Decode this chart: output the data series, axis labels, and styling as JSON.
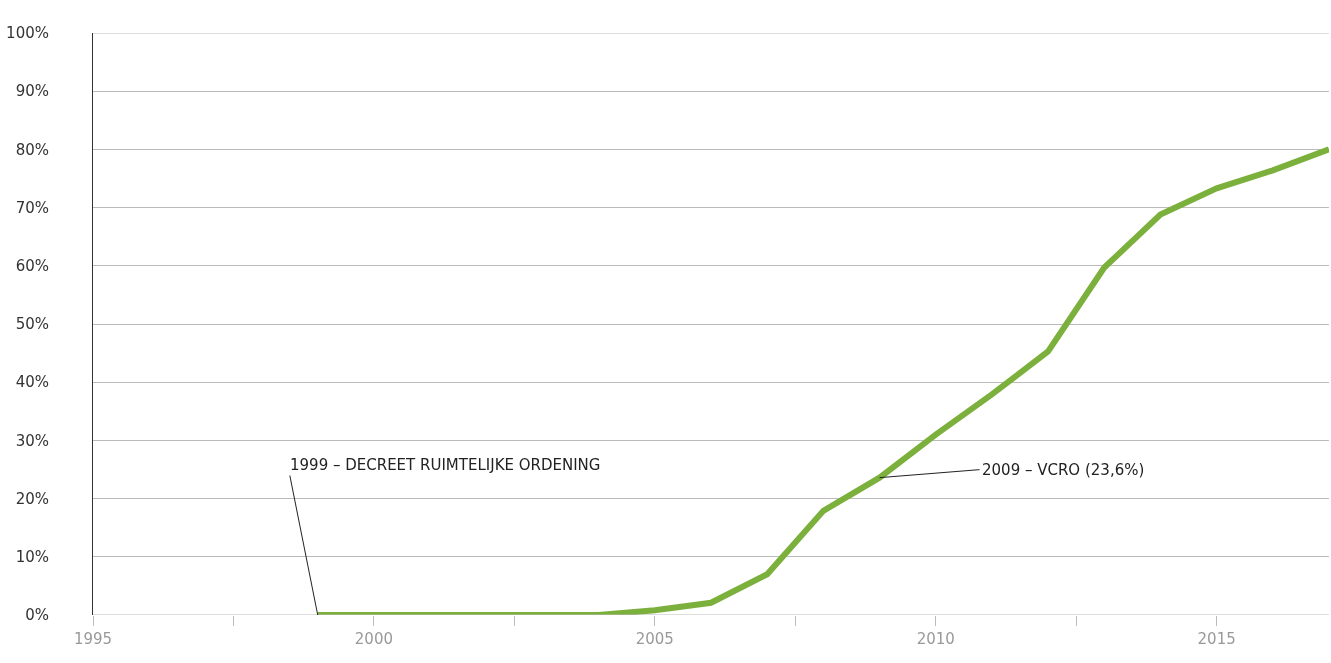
{
  "chart_data": {
    "type": "line",
    "x": [
      1999,
      2000,
      2001,
      2002,
      2003,
      2004,
      2005,
      2006,
      2007,
      2008,
      2009,
      2010,
      2011,
      2012,
      2013,
      2014,
      2015,
      2016,
      2017
    ],
    "series": [
      {
        "color": "#7cb03c",
        "values": [
          0,
          0,
          0,
          0,
          0,
          0,
          0.8,
          2.1,
          7,
          17.9,
          23.6,
          31,
          37.9,
          45.3,
          59.7,
          68.8,
          73.3,
          76.4,
          80
        ]
      }
    ],
    "xlim": [
      1995,
      2017
    ],
    "xticks": [
      1995,
      {
        "value": 1997.5,
        "label": null
      },
      2000,
      {
        "value": 2002.5,
        "label": null
      },
      2005,
      {
        "value": 2007.5,
        "label": null
      },
      2010,
      {
        "value": 2012.5,
        "label": null
      },
      2015
    ],
    "ylim": [
      0,
      100
    ],
    "yticks": [
      {
        "value": 0,
        "label": "0%"
      },
      {
        "value": 10,
        "label": "10%"
      },
      {
        "value": 20,
        "label": "20%"
      },
      {
        "value": 30,
        "label": "30%"
      },
      {
        "value": 40,
        "label": "40%"
      },
      {
        "value": 50,
        "label": "50%"
      },
      {
        "value": 60,
        "label": "60%"
      },
      {
        "value": 70,
        "label": "70%"
      },
      {
        "value": 80,
        "label": "80%"
      },
      {
        "value": 90,
        "label": "90%"
      },
      {
        "value": 100,
        "label": "100%"
      }
    ],
    "grid": "y",
    "marker": "none",
    "line_style": "solid",
    "annotations": [
      {
        "text": "1999 – DECREET RUIMTELIJKE ORDENING",
        "x": 1999,
        "y": 0
      },
      {
        "text": "2009 – VCRO (23,6%)",
        "x": 2009,
        "y": 23.6
      }
    ]
  }
}
